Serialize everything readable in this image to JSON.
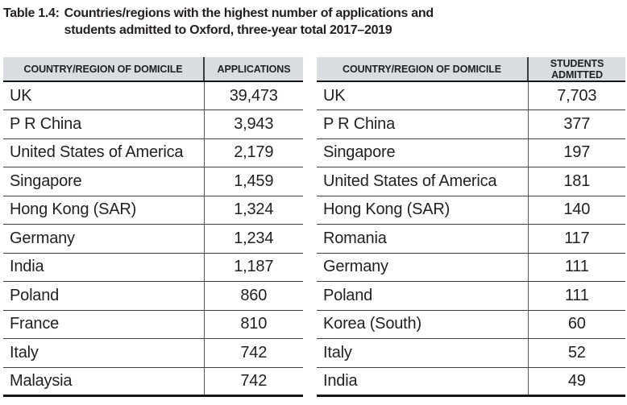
{
  "title": {
    "label": "Table 1.4:",
    "text": "Countries/regions with the highest number of applications and students admitted to Oxford, three-year total 2017–2019"
  },
  "tables": [
    {
      "id": "applications",
      "columns": [
        "COUNTRY/REGION OF DOMICILE",
        "APPLICATIONS"
      ],
      "rows": [
        [
          "UK",
          "39,473"
        ],
        [
          "P R China",
          "3,943"
        ],
        [
          "United States of America",
          "2,179"
        ],
        [
          "Singapore",
          "1,459"
        ],
        [
          "Hong Kong (SAR)",
          "1,324"
        ],
        [
          "Germany",
          "1,234"
        ],
        [
          "India",
          "1,187"
        ],
        [
          "Poland",
          "860"
        ],
        [
          "France",
          "810"
        ],
        [
          "Italy",
          "742"
        ],
        [
          "Malaysia",
          "742"
        ]
      ]
    },
    {
      "id": "students-admitted",
      "columns": [
        "COUNTRY/REGION OF DOMICILE",
        "STUDENTS ADMITTED"
      ],
      "rows": [
        [
          "UK",
          "7,703"
        ],
        [
          "P R China",
          "377"
        ],
        [
          "Singapore",
          "197"
        ],
        [
          "United States of America",
          "181"
        ],
        [
          "Hong Kong (SAR)",
          "140"
        ],
        [
          "Romania",
          "117"
        ],
        [
          "Germany",
          "111"
        ],
        [
          "Poland",
          "111"
        ],
        [
          "Korea (South)",
          "60"
        ],
        [
          "Italy",
          "52"
        ],
        [
          "India",
          "49"
        ]
      ]
    }
  ],
  "colors": {
    "header_bg": "#d9dce0",
    "text": "#231f20",
    "row_line": "#3e4043",
    "heavy_line": "#151515",
    "divider": "#595b5f"
  }
}
